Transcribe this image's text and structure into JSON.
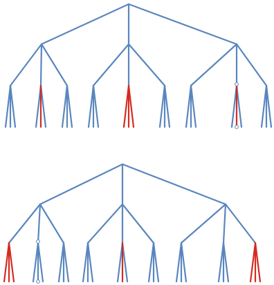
{
  "colors": {
    "branch": "#5a86be",
    "highlight": "#d42b21",
    "marker_fill": "#ffffff",
    "marker_stroke": "#5a86be",
    "background": "#ffffff"
  },
  "trees": [
    {
      "name": "top-tree",
      "groups": [
        {
          "leaves": [
            "blue",
            "blue",
            "blue"
          ]
        },
        {
          "leaves": [
            "blue",
            "red",
            "blue"
          ]
        },
        {
          "leaves": [
            "blue",
            "blue",
            "blue"
          ]
        },
        {
          "leaves": [
            "blue",
            "blue",
            "blue"
          ]
        },
        {
          "leaves": [
            "red",
            "red",
            "red"
          ]
        },
        {
          "leaves": [
            "blue",
            "blue",
            "blue"
          ]
        },
        {
          "leaves": [
            "blue",
            "blue",
            "blue"
          ]
        },
        {
          "leaves": [
            "blue",
            "red",
            "blue"
          ],
          "markers": "middle"
        },
        {
          "leaves": [
            "blue",
            "blue",
            "blue"
          ]
        }
      ]
    },
    {
      "name": "bottom-tree",
      "groups": [
        {
          "leaves": [
            "red",
            "red",
            "red"
          ]
        },
        {
          "leaves": [
            "blue",
            "blue",
            "blue"
          ],
          "markers": "middle"
        },
        {
          "leaves": [
            "blue",
            "blue",
            "blue"
          ]
        },
        {
          "leaves": [
            "blue",
            "blue",
            "blue"
          ]
        },
        {
          "leaves": [
            "blue",
            "red",
            "blue"
          ]
        },
        {
          "leaves": [
            "blue",
            "blue",
            "blue"
          ]
        },
        {
          "leaves": [
            "blue",
            "blue",
            "blue"
          ]
        },
        {
          "leaves": [
            "blue",
            "blue",
            "blue"
          ]
        },
        {
          "leaves": [
            "red",
            "red",
            "red"
          ]
        }
      ]
    }
  ]
}
